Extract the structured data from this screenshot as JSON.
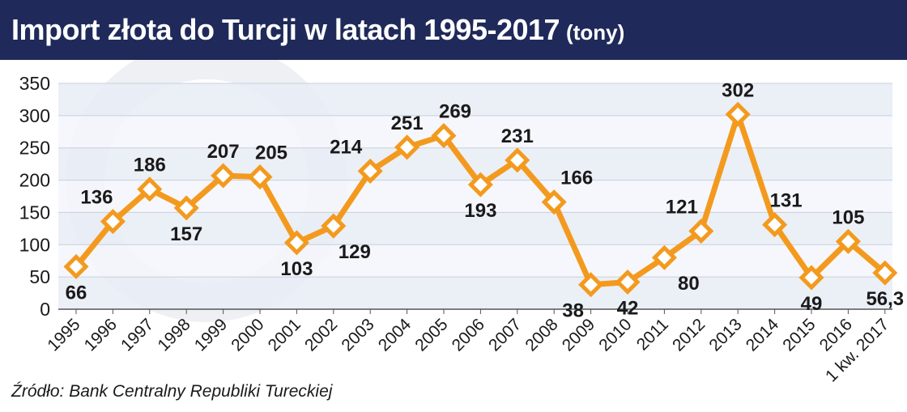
{
  "header": {
    "title": "Import złota do Turcji w latach 1995-2017",
    "unit": "(tony)"
  },
  "source": "Źródło: Bank Centralny Republiki Tureckiej",
  "colors": {
    "header_bg": "#1f2a5a",
    "line": "#f39a1e",
    "marker_fill": "#ffffff",
    "band_dark": "#e7ecf5",
    "band_light": "#f4f6fb"
  },
  "chart_data": {
    "type": "line",
    "title": "Import złota do Turcji w latach 1995-2017",
    "unit": "(tony)",
    "xlabel": "",
    "ylabel": "",
    "ylim": [
      0,
      350
    ],
    "yticks": [
      0,
      50,
      100,
      150,
      200,
      250,
      300,
      350
    ],
    "grid": true,
    "categories": [
      "1995",
      "1996",
      "1997",
      "1998",
      "1999",
      "2000",
      "2001",
      "2002",
      "2003",
      "2004",
      "2005",
      "2006",
      "2007",
      "2008",
      "2009",
      "2010",
      "2011",
      "2012",
      "2013",
      "2014",
      "2015",
      "2016",
      "1 kw. 2017"
    ],
    "values": [
      66,
      136,
      186,
      157,
      207,
      205,
      103,
      129,
      214,
      251,
      269,
      193,
      231,
      166,
      38,
      42,
      80,
      121,
      302,
      131,
      49,
      105,
      56.3
    ],
    "data_labels": [
      "66",
      "136",
      "186",
      "157",
      "207",
      "205",
      "103",
      "129",
      "214",
      "251",
      "269",
      "193",
      "231",
      "166",
      "38",
      "42",
      "80",
      "121",
      "302",
      "131",
      "49",
      "105",
      "56,3"
    ]
  }
}
